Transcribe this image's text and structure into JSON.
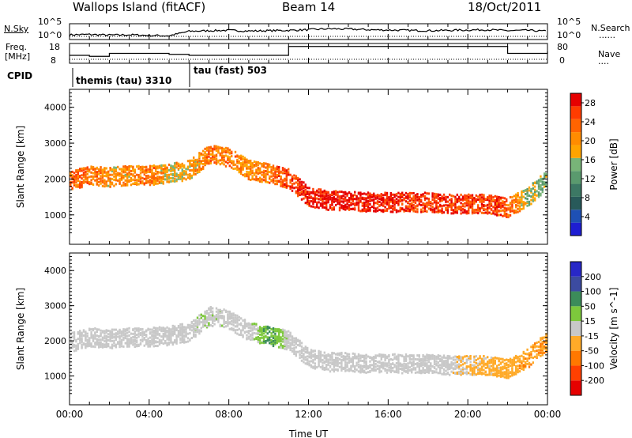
{
  "header": {
    "station": "Wallops Island (fitACF)",
    "beam": "Beam 14",
    "date": "18/Oct/2011"
  },
  "labels": {
    "nsky": "N.Sky",
    "nsearch": "N.Search",
    "freq_line1": "Freq.",
    "freq_line2": "[MHz]",
    "nave": "Nave",
    "cpid": "CPID",
    "dots": "......",
    "dots_short": "....",
    "noise_top_left": "10^5",
    "noise_bottom_left": "10^0",
    "noise_top_right": "10^5",
    "noise_bottom_right": "10^0",
    "freq_tick_top": "18",
    "freq_tick_bottom": "8",
    "nave_tick_top": "80",
    "nave_tick_bottom": "0",
    "cpid_entries": [
      {
        "name": "themis (tau)",
        "id": "3310"
      },
      {
        "name": "tau (fast)",
        "id": "503"
      }
    ]
  },
  "colors": {
    "power_scale": [
      "#1e1ed2",
      "#1e50b4",
      "#285a5a",
      "#3c7864",
      "#5a9a6e",
      "#78b478",
      "#ffa400",
      "#ff8c00",
      "#ff6400",
      "#ff3c00",
      "#e60000"
    ],
    "velocity_scale": [
      "#2828c8",
      "#3c4ba0",
      "#3c8c5a",
      "#7dc83c",
      "#c8c8c8",
      "#ffaa28",
      "#ff7800",
      "#ff4000",
      "#e60000"
    ]
  },
  "chart_data": [
    {
      "type": "line",
      "panel": "noise",
      "ylabel_left": "N.Sky",
      "ylabel_right": "N.Search",
      "ylim": [
        0,
        5
      ],
      "y_scale": "log10",
      "x": [
        0,
        1,
        2,
        3,
        4,
        5,
        6,
        7,
        8,
        9,
        10,
        11,
        12,
        13,
        14,
        15,
        16,
        17,
        18,
        19,
        20,
        21,
        22,
        23,
        24
      ],
      "series": [
        {
          "values": [
            1.5,
            1.6,
            1.4,
            1.5,
            1.3,
            1.2,
            2.6,
            2.8,
            2.9,
            2.7,
            2.8,
            2.9,
            3.1,
            3.4,
            3.3,
            3.1,
            3.0,
            2.9,
            2.8,
            2.9,
            3.0,
            3.1,
            2.8,
            2.9,
            2.6
          ]
        }
      ]
    },
    {
      "type": "line",
      "panel": "frequency",
      "ylabel_left": "Freq. [MHz]",
      "ylabel_right": "Nave",
      "ylim": [
        8,
        18
      ],
      "x": [
        0,
        1,
        2,
        3,
        4,
        5,
        6,
        7,
        8,
        9,
        10,
        11,
        12,
        13,
        14,
        15,
        16,
        17,
        18,
        19,
        20,
        21,
        22,
        23,
        24
      ],
      "series": [
        {
          "values": [
            12.0,
            11.5,
            13.0,
            13.0,
            13.0,
            12.5,
            12.0,
            12.0,
            12.0,
            12.0,
            12.0,
            16.5,
            16.5,
            16.5,
            16.5,
            16.5,
            16.5,
            16.5,
            16.5,
            16.5,
            16.5,
            16.5,
            13.0,
            13.0,
            14.0
          ]
        }
      ]
    },
    {
      "type": "heatmap",
      "panel": "power",
      "title": "",
      "xlabel": "",
      "ylabel": "Slant Range [km]",
      "colorbar_label": "Power [dB]",
      "colorbar_ticks": [
        4,
        8,
        12,
        16,
        20,
        24,
        28
      ],
      "colorbar_range": [
        0,
        30
      ],
      "ylim": [
        180,
        4500
      ],
      "yticks": [
        1000,
        2000,
        3000,
        4000
      ],
      "x_hours": [
        0,
        1,
        2,
        3,
        4,
        5,
        6,
        7,
        8,
        9,
        10,
        11,
        12,
        13,
        14,
        15,
        16,
        17,
        18,
        19,
        20,
        21,
        22,
        23,
        24
      ],
      "echo_band_center_km": [
        1950,
        2100,
        2050,
        2100,
        2100,
        2150,
        2250,
        2700,
        2600,
        2250,
        2150,
        2000,
        1500,
        1400,
        1400,
        1350,
        1350,
        1350,
        1350,
        1300,
        1300,
        1300,
        1200,
        1500,
        2000
      ],
      "echo_band_power_db": [
        24,
        22,
        20,
        20,
        22,
        18,
        18,
        22,
        22,
        20,
        22,
        26,
        28,
        28,
        28,
        28,
        28,
        26,
        26,
        26,
        26,
        26,
        24,
        16,
        14
      ]
    },
    {
      "type": "heatmap",
      "panel": "velocity",
      "title": "",
      "xlabel": "Time UT",
      "ylabel": "Slant Range [km]",
      "colorbar_label": "Velocity [m s^-1]",
      "colorbar_ticks": [
        200,
        100,
        50,
        15,
        -15,
        -50,
        -100,
        -200
      ],
      "ylim": [
        180,
        4500
      ],
      "yticks": [
        1000,
        2000,
        3000,
        4000
      ],
      "x_ticks": [
        "00:00",
        "04:00",
        "08:00",
        "12:00",
        "16:00",
        "20:00",
        "00:00"
      ],
      "x_hours": [
        0,
        1,
        2,
        3,
        4,
        5,
        6,
        7,
        8,
        9,
        10,
        11,
        12,
        13,
        14,
        15,
        16,
        17,
        18,
        19,
        20,
        21,
        22,
        23,
        24
      ],
      "echo_band_center_km": [
        1950,
        2100,
        2050,
        2100,
        2100,
        2150,
        2250,
        2700,
        2600,
        2250,
        2150,
        2000,
        1500,
        1400,
        1400,
        1350,
        1350,
        1350,
        1350,
        1300,
        1300,
        1300,
        1200,
        1500,
        2000
      ],
      "echo_band_velocity_ms": [
        0,
        0,
        0,
        0,
        0,
        0,
        5,
        10,
        5,
        0,
        80,
        0,
        0,
        0,
        0,
        0,
        0,
        0,
        0,
        0,
        -30,
        -40,
        -40,
        -60,
        -60
      ]
    }
  ]
}
